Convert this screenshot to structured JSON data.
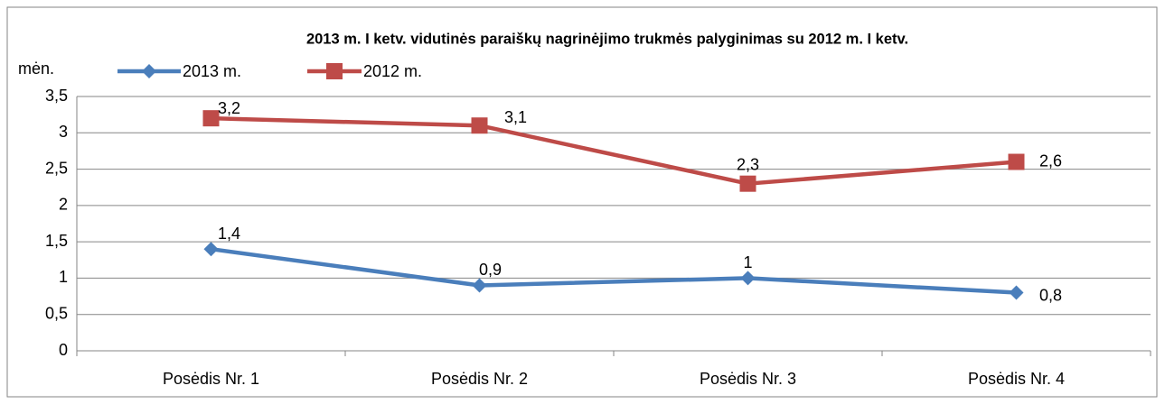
{
  "chart_data": {
    "type": "line",
    "title": "2013 m. I ketv. vidutinės paraiškų nagrinėjimo trukmės palyginimas su 2012 m. I ketv.",
    "y_label": "mėn.",
    "categories": [
      "Posėdis Nr. 1",
      "Posėdis Nr. 2",
      "Posėdis Nr. 3",
      "Posėdis Nr. 4"
    ],
    "series": [
      {
        "name": "2013 m.",
        "color": "#4a7ebb",
        "marker": "diamond",
        "values": [
          1.4,
          0.9,
          1,
          0.8
        ],
        "value_labels": [
          "1,4",
          "0,9",
          "1",
          "0,8"
        ]
      },
      {
        "name": "2012 m.",
        "color": "#be4b48",
        "marker": "square",
        "values": [
          3.2,
          3.1,
          2.3,
          2.6
        ],
        "value_labels": [
          "3,2",
          "3,1",
          "2,3",
          "2,6"
        ]
      }
    ],
    "ylim": [
      0,
      3.5
    ],
    "yticks": [
      0,
      {
        "value": 0.5,
        "label": "0,5"
      },
      1,
      {
        "value": 1.5,
        "label": "1,5"
      },
      2,
      {
        "value": 2.5,
        "label": "2,5"
      },
      3,
      {
        "value": 3.5,
        "label": "3,5"
      }
    ],
    "grid": true,
    "legend": "top-left"
  }
}
